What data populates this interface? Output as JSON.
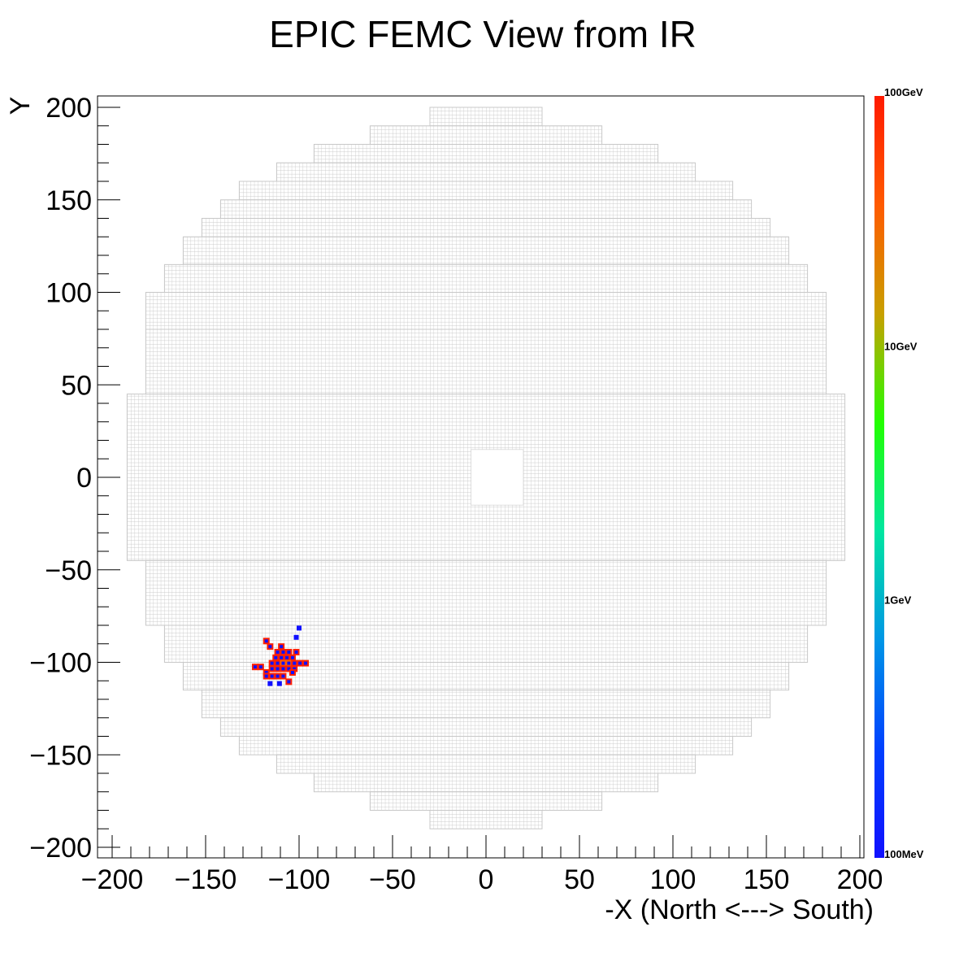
{
  "chart_data": {
    "type": "heatmap",
    "title": "EPIC FEMC View from IR",
    "xlabel": "-X (North <---> South)",
    "ylabel": "Y",
    "xlim": [
      -205,
      205
    ],
    "ylim": [
      -205,
      205
    ],
    "x_ticks": [
      -200,
      -150,
      -100,
      -50,
      0,
      50,
      100,
      150,
      200
    ],
    "y_ticks": [
      -200,
      -150,
      -100,
      -50,
      0,
      50,
      100,
      150,
      200
    ],
    "x_tick_labels": [
      "−200",
      "−150",
      "−100",
      "−50",
      "0",
      "50",
      "100",
      "150",
      "200"
    ],
    "y_tick_labels": [
      "−200",
      "−150",
      "−100",
      "−50",
      "0",
      "50",
      "100",
      "150",
      "200"
    ],
    "colorbar": {
      "scale": "log",
      "labels": [
        "100GeV",
        "10GeV",
        "1GeV",
        "100MeV"
      ],
      "values_GeV": [
        100,
        10,
        1,
        0.1
      ],
      "colors": [
        "#ff1a00",
        "#ff5a00",
        "#c8a000",
        "#22ff00",
        "#00e6a0",
        "#0096e6",
        "#0040ff",
        "#1010ff"
      ]
    },
    "detector_outline_rows": [
      {
        "y": [
          190,
          200
        ],
        "x": [
          -30,
          30
        ]
      },
      {
        "y": [
          180,
          190
        ],
        "x": [
          -62,
          62
        ]
      },
      {
        "y": [
          170,
          180
        ],
        "x": [
          -92,
          92
        ]
      },
      {
        "y": [
          160,
          170
        ],
        "x": [
          -112,
          112
        ]
      },
      {
        "y": [
          150,
          160
        ],
        "x": [
          -132,
          132
        ]
      },
      {
        "y": [
          140,
          150
        ],
        "x": [
          -142,
          142
        ]
      },
      {
        "y": [
          130,
          140
        ],
        "x": [
          -152,
          152
        ]
      },
      {
        "y": [
          115,
          130
        ],
        "x": [
          -162,
          162
        ]
      },
      {
        "y": [
          100,
          115
        ],
        "x": [
          -172,
          172
        ]
      },
      {
        "y": [
          80,
          100
        ],
        "x": [
          -182,
          182
        ]
      },
      {
        "y": [
          45,
          80
        ],
        "x": [
          -182,
          182
        ]
      },
      {
        "y": [
          -45,
          45
        ],
        "x": [
          -192,
          192
        ]
      },
      {
        "y": [
          -80,
          -45
        ],
        "x": [
          -182,
          182
        ]
      },
      {
        "y": [
          -100,
          -80
        ],
        "x": [
          -172,
          172
        ]
      },
      {
        "y": [
          -115,
          -100
        ],
        "x": [
          -162,
          162
        ]
      },
      {
        "y": [
          -130,
          -115
        ],
        "x": [
          -152,
          152
        ]
      },
      {
        "y": [
          -140,
          -130
        ],
        "x": [
          -142,
          142
        ]
      },
      {
        "y": [
          -150,
          -140
        ],
        "x": [
          -132,
          132
        ]
      },
      {
        "y": [
          -160,
          -150
        ],
        "x": [
          -112,
          112
        ]
      },
      {
        "y": [
          -170,
          -160
        ],
        "x": [
          -92,
          92
        ]
      },
      {
        "y": [
          -180,
          -170
        ],
        "x": [
          -62,
          62
        ]
      },
      {
        "y": [
          -190,
          -180
        ],
        "x": [
          -30,
          30
        ]
      }
    ],
    "beam_hole": {
      "x": [
        -8,
        20
      ],
      "y": [
        -15,
        15
      ]
    },
    "hits": [
      {
        "x": -100,
        "y": -81.5,
        "E_GeV": 0.1
      },
      {
        "x": -101.5,
        "y": -86.5,
        "E_GeV": 0.1
      },
      {
        "x": -117.5,
        "y": -88.5,
        "E_GeV": 60
      },
      {
        "x": -115.5,
        "y": -91.5,
        "E_GeV": 60
      },
      {
        "x": -109.5,
        "y": -91.5,
        "E_GeV": 60
      },
      {
        "x": -111.5,
        "y": -94.5,
        "E_GeV": 60
      },
      {
        "x": -108.5,
        "y": -94.5,
        "E_GeV": 60
      },
      {
        "x": -105.5,
        "y": -94.5,
        "E_GeV": 60
      },
      {
        "x": -101.5,
        "y": -94.5,
        "E_GeV": 60
      },
      {
        "x": -112.5,
        "y": -97.5,
        "E_GeV": 60
      },
      {
        "x": -109.5,
        "y": -97.5,
        "E_GeV": 60
      },
      {
        "x": -106.5,
        "y": -97.5,
        "E_GeV": 60
      },
      {
        "x": -103.5,
        "y": -97.5,
        "E_GeV": 60
      },
      {
        "x": -114.5,
        "y": -100.5,
        "E_GeV": 60
      },
      {
        "x": -111.5,
        "y": -100.5,
        "E_GeV": 60
      },
      {
        "x": -108.5,
        "y": -100.5,
        "E_GeV": 30
      },
      {
        "x": -105.5,
        "y": -100.5,
        "E_GeV": 25
      },
      {
        "x": -102.5,
        "y": -100.5,
        "E_GeV": 60
      },
      {
        "x": -99.5,
        "y": -100.5,
        "E_GeV": 60
      },
      {
        "x": -96.5,
        "y": -100.5,
        "E_GeV": 60
      },
      {
        "x": -123.5,
        "y": -102.5,
        "E_GeV": 60
      },
      {
        "x": -120.5,
        "y": -102.5,
        "E_GeV": 60
      },
      {
        "x": -114.5,
        "y": -103.5,
        "E_GeV": 60
      },
      {
        "x": -111.5,
        "y": -103.5,
        "E_GeV": 60
      },
      {
        "x": -108.5,
        "y": -103.5,
        "E_GeV": 60
      },
      {
        "x": -105.5,
        "y": -103.5,
        "E_GeV": 60
      },
      {
        "x": -102.5,
        "y": -103.5,
        "E_GeV": 60
      },
      {
        "x": -117.5,
        "y": -105.5,
        "E_GeV": 60
      },
      {
        "x": -103.5,
        "y": -105.5,
        "E_GeV": 60
      },
      {
        "x": -117.5,
        "y": -107.5,
        "E_GeV": 60
      },
      {
        "x": -114.5,
        "y": -107.5,
        "E_GeV": 60
      },
      {
        "x": -111.5,
        "y": -107.5,
        "E_GeV": 60
      },
      {
        "x": -108.5,
        "y": -107.5,
        "E_GeV": 60
      },
      {
        "x": -105.5,
        "y": -110.5,
        "E_GeV": 60
      },
      {
        "x": -115.5,
        "y": -111.5,
        "E_GeV": 0.1
      },
      {
        "x": -110.5,
        "y": -111.5,
        "E_GeV": 0.1
      }
    ]
  }
}
